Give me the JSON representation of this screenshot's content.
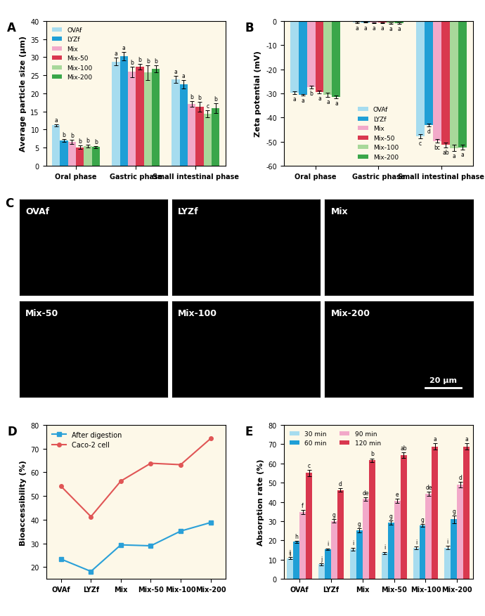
{
  "chart_data": [
    {
      "type": "bar",
      "title": "A",
      "categories": [
        "Oral phase",
        "Gastric phase",
        "Small intestinal phase"
      ],
      "ylabel": "Average particle size (μm)",
      "ylim": [
        0,
        40
      ],
      "yticks": [
        0,
        5,
        10,
        15,
        20,
        25,
        30,
        35,
        40
      ],
      "legend": "upper left",
      "series": [
        {
          "name": "OVAf",
          "color": "#a6dcef",
          "values": [
            11.2,
            28.8,
            23.8
          ],
          "errors": [
            0.3,
            1.0,
            1.0
          ],
          "annotations": [
            "a",
            "a",
            "a"
          ]
        },
        {
          "name": "LYZf",
          "color": "#1f9fd6",
          "values": [
            7.0,
            30.3,
            22.5
          ],
          "errors": [
            0.4,
            1.2,
            1.2
          ],
          "annotations": [
            "b",
            "a",
            "a"
          ]
        },
        {
          "name": "Mix",
          "color": "#f2a9c9",
          "values": [
            6.6,
            25.9,
            17.1
          ],
          "errors": [
            0.5,
            1.5,
            0.8
          ],
          "annotations": [
            "b",
            "b",
            "b"
          ]
        },
        {
          "name": "Mix-50",
          "color": "#d9384f",
          "values": [
            5.1,
            27.3,
            16.3
          ],
          "errors": [
            0.5,
            0.8,
            1.3
          ],
          "annotations": [
            "b",
            "b",
            "b"
          ]
        },
        {
          "name": "Mix-100",
          "color": "#a8d89a",
          "values": [
            5.5,
            25.7,
            14.3
          ],
          "errors": [
            0.4,
            2.0,
            1.0
          ],
          "annotations": [
            "b",
            "b",
            "c"
          ]
        },
        {
          "name": "Mix-200",
          "color": "#3aa64a",
          "values": [
            5.2,
            26.8,
            15.9
          ],
          "errors": [
            0.3,
            1.0,
            1.3
          ],
          "annotations": [
            "b",
            "b",
            "b"
          ]
        }
      ]
    },
    {
      "type": "bar",
      "title": "B",
      "categories": [
        "Oral phase",
        "Gastric phase",
        "Small intestinal phase"
      ],
      "ylabel": "Zeta potential (mV)",
      "ylim": [
        -60,
        0
      ],
      "yticks": [
        -60,
        -50,
        -40,
        -30,
        -20,
        -10,
        0
      ],
      "legend": "lower center",
      "series": [
        {
          "name": "OVAf",
          "color": "#a6dcef",
          "values": [
            -29.7,
            -0.7,
            -47.8
          ],
          "errors": [
            0.6,
            0.2,
            0.8
          ],
          "annotations": [
            "a",
            "a",
            "c"
          ]
        },
        {
          "name": "LYZf",
          "color": "#1f9fd6",
          "values": [
            -30.6,
            -0.6,
            -43.1
          ],
          "errors": [
            0.4,
            0.2,
            0.5
          ],
          "annotations": [
            "a",
            "a",
            "d"
          ]
        },
        {
          "name": "Mix",
          "color": "#f2a9c9",
          "values": [
            -27.4,
            -0.8,
            -49.7
          ],
          "errors": [
            0.6,
            0.2,
            0.8
          ],
          "annotations": [
            "b",
            "a",
            "bc"
          ]
        },
        {
          "name": "Mix-50",
          "color": "#d9384f",
          "values": [
            -29.5,
            -0.8,
            -51.3
          ],
          "errors": [
            0.6,
            0.2,
            1.0
          ],
          "annotations": [
            "a",
            "a",
            "ab"
          ]
        },
        {
          "name": "Mix-100",
          "color": "#a8d89a",
          "values": [
            -30.6,
            -0.9,
            -52.6
          ],
          "errors": [
            0.8,
            0.2,
            1.2
          ],
          "annotations": [
            "a",
            "a",
            "a"
          ]
        },
        {
          "name": "Mix-200",
          "color": "#3aa64a",
          "values": [
            -31.4,
            -0.9,
            -52.4
          ],
          "errors": [
            0.6,
            0.2,
            1.0
          ],
          "annotations": [
            "a",
            "a",
            "a"
          ]
        }
      ]
    },
    {
      "type": "line",
      "title": "D",
      "categories": [
        "OVAf",
        "LYZf",
        "Mix",
        "Mix-50",
        "Mix-100",
        "Mix-200"
      ],
      "ylabel": "Bioaccessibility (%)",
      "ylim": [
        15,
        80
      ],
      "yticks": [
        20,
        30,
        40,
        50,
        60,
        70,
        80
      ],
      "legend": "upper left",
      "series": [
        {
          "name": "After digestion",
          "color": "#2aa0d8",
          "marker": "s",
          "values": [
            23.4,
            18.2,
            29.4,
            29.0,
            35.2,
            38.8
          ]
        },
        {
          "name": "Caco-2 cell",
          "color": "#e05555",
          "marker": "o",
          "values": [
            54.1,
            41.3,
            56.3,
            63.8,
            63.2,
            74.2
          ]
        }
      ]
    },
    {
      "type": "bar",
      "title": "E",
      "categories": [
        "OVAf",
        "LYZf",
        "Mix",
        "Mix-50",
        "Mix-100",
        "Mix-200"
      ],
      "ylabel": "Absorption rate (%)",
      "ylim": [
        0,
        80
      ],
      "yticks": [
        0,
        10,
        20,
        30,
        40,
        50,
        60,
        70,
        80
      ],
      "legend": "upper left",
      "series": [
        {
          "name": "30 min",
          "color": "#a6dcef",
          "values": [
            10.8,
            7.6,
            15.5,
            13.5,
            16.2,
            16.3
          ],
          "errors": [
            0.5,
            0.5,
            0.8,
            0.6,
            0.7,
            0.8
          ],
          "annotations": [
            "ij",
            "j",
            "i",
            "i",
            "i",
            "i"
          ]
        },
        {
          "name": "60 min",
          "color": "#1f9fd6",
          "values": [
            19.3,
            15.4,
            25.2,
            29.3,
            27.8,
            31.0
          ],
          "errors": [
            0.5,
            0.5,
            1.0,
            1.0,
            0.8,
            2.0
          ],
          "annotations": [
            "h",
            "i",
            "g",
            "g",
            "g",
            "g"
          ]
        },
        {
          "name": "90 min",
          "color": "#f2a9c9",
          "values": [
            34.8,
            30.1,
            41.5,
            40.5,
            44.2,
            49.0
          ],
          "errors": [
            1.0,
            1.0,
            1.0,
            1.0,
            1.0,
            1.5
          ],
          "annotations": [
            "f",
            "g",
            "de",
            "e",
            "de",
            "d"
          ]
        },
        {
          "name": "120 min",
          "color": "#d9384f",
          "values": [
            55.0,
            46.2,
            61.6,
            64.2,
            68.8,
            68.8
          ],
          "errors": [
            1.5,
            1.0,
            1.0,
            1.5,
            1.5,
            1.5
          ],
          "annotations": [
            "c",
            "d",
            "b",
            "ab",
            "a",
            "a"
          ]
        }
      ]
    }
  ],
  "micrographs": {
    "title": "C",
    "panels": [
      "OVAf",
      "LYZf",
      "Mix",
      "Mix-50",
      "Mix-100",
      "Mix-200"
    ],
    "scale_bar": "20 μm"
  }
}
